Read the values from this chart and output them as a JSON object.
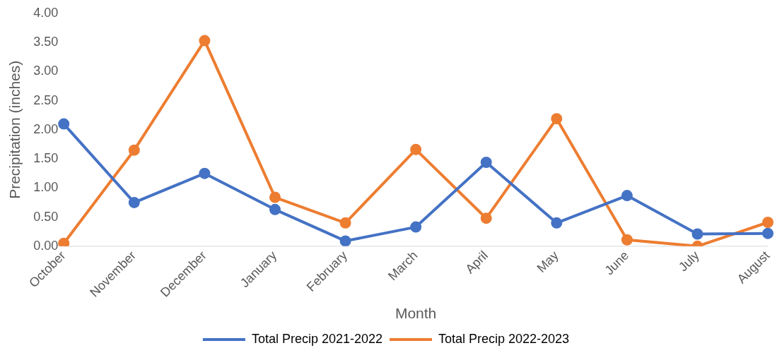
{
  "chart_data": {
    "type": "line",
    "xlabel": "Month",
    "ylabel": "Precipitation (inches)",
    "categories": [
      "October",
      "November",
      "December",
      "January",
      "February",
      "March",
      "April",
      "May",
      "June",
      "July",
      "August"
    ],
    "series": [
      {
        "name": "Total Precip 2021-2022",
        "color": "#4472c4",
        "values": [
          2.1,
          0.75,
          1.25,
          0.63,
          0.09,
          0.33,
          1.44,
          0.4,
          0.87,
          0.21,
          0.22
        ]
      },
      {
        "name": "Total Precip 2022-2023",
        "color": "#ed7d31",
        "values": [
          0.05,
          1.65,
          3.53,
          0.84,
          0.4,
          1.66,
          0.48,
          2.19,
          0.11,
          0.0,
          0.41
        ]
      }
    ],
    "ylim": [
      0,
      4
    ],
    "yticks": [
      {
        "value": 0,
        "label": "0.00"
      },
      {
        "value": 0.5,
        "label": "0.50"
      },
      {
        "value": 1,
        "label": "1.00"
      },
      {
        "value": 1.5,
        "label": "1.50"
      },
      {
        "value": 2,
        "label": "2.00"
      },
      {
        "value": 2.5,
        "label": "2.50"
      },
      {
        "value": 3,
        "label": "3.00"
      },
      {
        "value": 3.5,
        "label": "3.50"
      },
      {
        "value": 4,
        "label": "4.00"
      }
    ],
    "grid": false,
    "legend": "bottom",
    "marker": "circle",
    "line_style": "solid"
  }
}
